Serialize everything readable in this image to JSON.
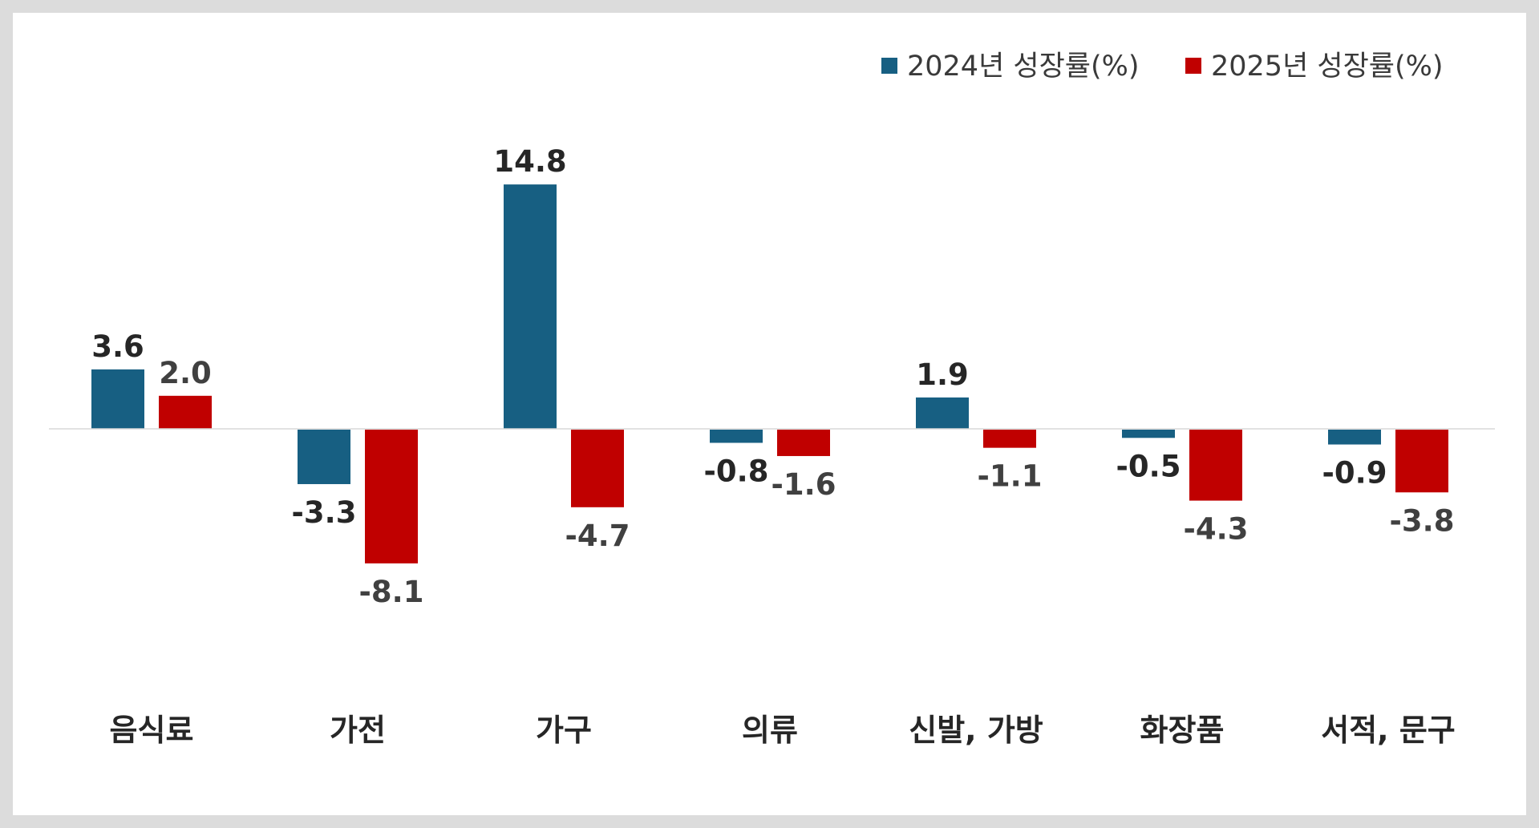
{
  "chart_data": {
    "type": "bar",
    "categories": [
      "음식료",
      "가전",
      "가구",
      "의류",
      "신발, 가방",
      "화장품",
      "서적, 문구"
    ],
    "series": [
      {
        "name": "2024년 성장률(%)",
        "color": "#175f82",
        "values": [
          3.6,
          -3.3,
          14.8,
          -0.8,
          1.9,
          -0.5,
          -0.9
        ]
      },
      {
        "name": "2025년 성장률(%)",
        "color": "#c00000",
        "values": [
          2.0,
          -8.1,
          -4.7,
          -1.6,
          -1.1,
          -4.3,
          -3.8
        ]
      }
    ],
    "title": "",
    "xlabel": "",
    "ylabel": "",
    "ylim": [
      -10,
      16
    ],
    "grid": false,
    "legend_position": "top-right",
    "data_labels": true,
    "baseline_color": "#d9d9d9"
  }
}
